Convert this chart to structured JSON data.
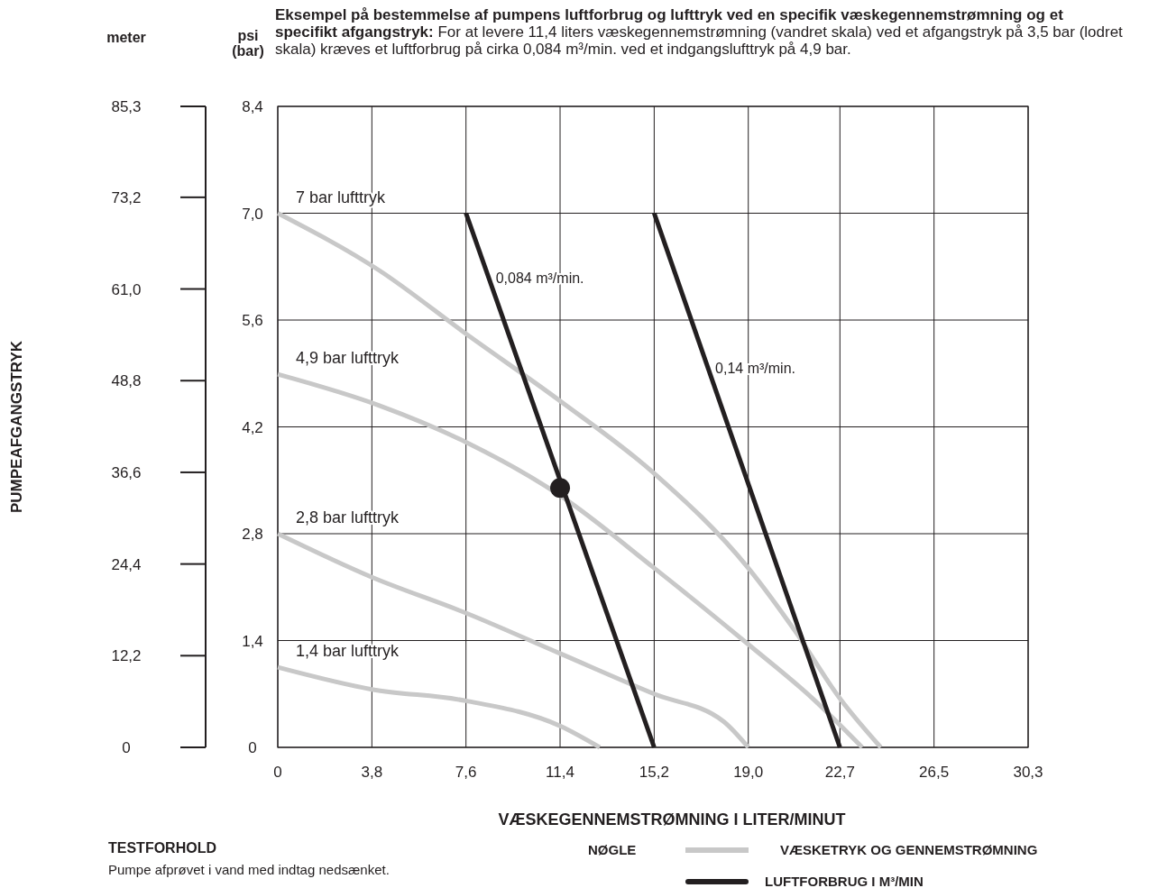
{
  "chart_data": {
    "type": "line",
    "title": "Eksempel på bestemmelse af pumpens luftforbrug og lufttryk ved en specifik væskegennemstrømning og et specifikt afgangstryk:",
    "subtitle": "For at levere 11,4 liters væskegennemstrømning (vandret skala) ved et afgangstryk på 3,5 bar (lodret skala) kræves et luftforbrug på cirka 0,084 m³/min. ved et indgangslufttryk på 4,9 bar.",
    "xlabel": "VÆSKEGENNEMSTRØMNING I LITER/MINUT",
    "ylabel": "psi (bar)",
    "y2label": "meter",
    "annotations": [
      "PUMPEAFGANGSTRYK",
      "TESTFORHOLD",
      "Pumpe afprøvet i vand med indtag nedsænket.",
      "NØGLE",
      "VÆSKETRYK OG GENNEMSTRØMNING",
      "LUFTFORBRUG I M³/MIN"
    ],
    "xlim": [
      0,
      30.3
    ],
    "xticks": [
      0,
      {
        "value": 3.8,
        "label": "3,8"
      },
      {
        "value": 7.6,
        "label": "7,6"
      },
      {
        "value": 11.4,
        "label": "11,4"
      },
      {
        "value": 15.2,
        "label": "15,2"
      },
      {
        "value": 19.0,
        "label": "19,0"
      },
      {
        "value": 22.7,
        "label": "22,7"
      },
      {
        "value": 26.5,
        "label": "26,5"
      },
      {
        "value": 30.3,
        "label": "30,3"
      }
    ],
    "ylim": [
      0,
      8.4
    ],
    "yticks": [
      0,
      {
        "value": 1.4,
        "label": "1,4"
      },
      {
        "value": 2.8,
        "label": "2,8"
      },
      {
        "value": 4.2,
        "label": "4,2"
      },
      {
        "value": 5.6,
        "label": "5,6"
      },
      {
        "value": 7.0,
        "label": "7,0"
      },
      {
        "value": 8.4,
        "label": "8,4"
      }
    ],
    "y2lim": [
      0,
      85.3
    ],
    "y2ticks": [
      0,
      {
        "value": 12.2,
        "label": "12,2"
      },
      {
        "value": 24.4,
        "label": "24,4"
      },
      {
        "value": 36.6,
        "label": "36,6"
      },
      {
        "value": 48.8,
        "label": "48,8"
      },
      {
        "value": 61.0,
        "label": "61,0"
      },
      {
        "value": 73.2,
        "label": "73,2"
      },
      {
        "value": 85.3,
        "label": "85,3"
      }
    ],
    "grid": true,
    "line_style": "solid",
    "series": [
      {
        "name": "7 bar lufttryk",
        "color": "#c8c8c8",
        "x": [
          0,
          4.1,
          7.6,
          11.4,
          15.2,
          19.0,
          20.9,
          22.7,
          24.35
        ],
        "values": [
          7.0,
          6.25,
          5.42,
          4.54,
          3.59,
          2.35,
          1.52,
          0.64,
          0
        ]
      },
      {
        "name": "4,9 bar lufttryk",
        "color": "#c8c8c8",
        "x": [
          0,
          4.1,
          7.6,
          11.4,
          15.2,
          19.0,
          21.6,
          23.6
        ],
        "values": [
          4.89,
          4.48,
          4.0,
          3.3,
          2.35,
          1.35,
          0.64,
          0
        ]
      },
      {
        "name": "2,8 bar lufttryk",
        "color": "#c8c8c8",
        "x": [
          0,
          3.8,
          7.6,
          11.4,
          15.2,
          18.0,
          19.0
        ],
        "values": [
          2.8,
          2.23,
          1.76,
          1.23,
          0.7,
          0.34,
          0
        ]
      },
      {
        "name": "1,4 bar lufttryk",
        "color": "#c8c8c8",
        "x": [
          0,
          3.8,
          7.6,
          11.4,
          13.0
        ],
        "values": [
          1.05,
          0.76,
          0.61,
          0.28,
          0
        ]
      },
      {
        "name": "0,084 m³/min.",
        "color": "#231f20",
        "x": [
          7.6,
          15.2
        ],
        "values": [
          7.0,
          0
        ]
      },
      {
        "name": "0,14 m³/min.",
        "color": "#231f20",
        "x": [
          15.2,
          22.7
        ],
        "values": [
          7.0,
          0
        ]
      },
      {
        "type": "scatter",
        "color": "#231f20",
        "marker": "circle",
        "x": [
          11.4
        ],
        "values": [
          3.4
        ]
      }
    ]
  }
}
